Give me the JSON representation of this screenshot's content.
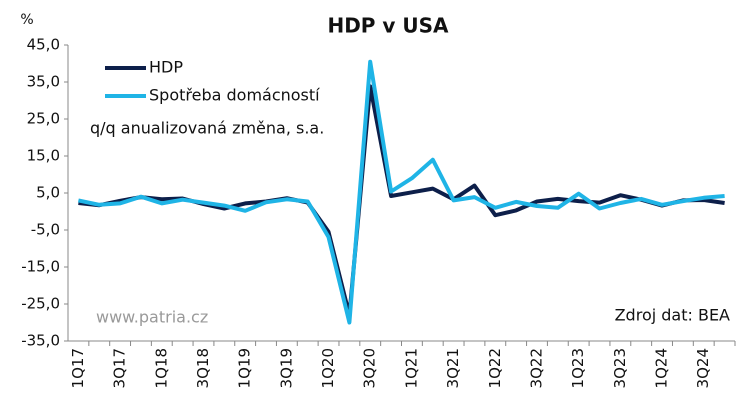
{
  "chart_data": {
    "type": "line",
    "title": "HDP v USA",
    "y_label": "%",
    "subtitle": "q/q anualizovaná změna, s.a.",
    "annotations": [
      "www.patria.cz",
      "Zdroj dat: BEA"
    ],
    "categories": [
      "1Q17",
      null,
      "3Q17",
      null,
      "1Q18",
      null,
      "3Q18",
      null,
      "1Q19",
      null,
      "3Q19",
      null,
      "1Q20",
      null,
      "3Q20",
      null,
      "1Q21",
      null,
      "3Q21",
      null,
      "1Q22",
      null,
      "3Q22",
      null,
      "1Q23",
      null,
      "3Q23",
      null,
      "1Q24",
      null,
      "3Q24",
      null
    ],
    "series": [
      {
        "name": "HDP",
        "color": "#0d1f4a",
        "values": [
          2.3,
          1.7,
          2.9,
          3.9,
          3.3,
          3.5,
          2.0,
          0.8,
          2.2,
          2.7,
          3.6,
          2.4,
          -5.5,
          -28.0,
          33.8,
          4.2,
          5.2,
          6.2,
          3.3,
          7.0,
          -1.0,
          0.3,
          2.7,
          3.4,
          2.8,
          2.4,
          4.4,
          3.2,
          1.6,
          3.0,
          3.1,
          2.3
        ]
      },
      {
        "name": "Spotřeba domácností",
        "color": "#1fb4e6",
        "values": [
          3.0,
          1.8,
          2.2,
          4.0,
          2.2,
          3.2,
          2.4,
          1.6,
          0.2,
          2.5,
          3.3,
          2.7,
          -6.9,
          -30.0,
          40.5,
          5.4,
          9.0,
          14.0,
          3.0,
          3.9,
          1.0,
          2.6,
          1.5,
          1.0,
          4.8,
          0.8,
          2.3,
          3.4,
          1.8,
          2.8,
          3.7,
          4.2
        ]
      }
    ],
    "ylim": [
      -35,
      45
    ],
    "yticks": [
      {
        "value": -35,
        "label": "-35,0"
      },
      {
        "value": -25,
        "label": "-25,0"
      },
      {
        "value": -15,
        "label": "-15,0"
      },
      {
        "value": -5,
        "label": "-5,0"
      },
      {
        "value": 5,
        "label": "5,0"
      },
      {
        "value": 15,
        "label": "15,0"
      },
      {
        "value": 25,
        "label": "25,0"
      },
      {
        "value": 35,
        "label": "35,0"
      },
      {
        "value": 45,
        "label": "45,0"
      }
    ],
    "grid": false,
    "legend": "upper left"
  }
}
